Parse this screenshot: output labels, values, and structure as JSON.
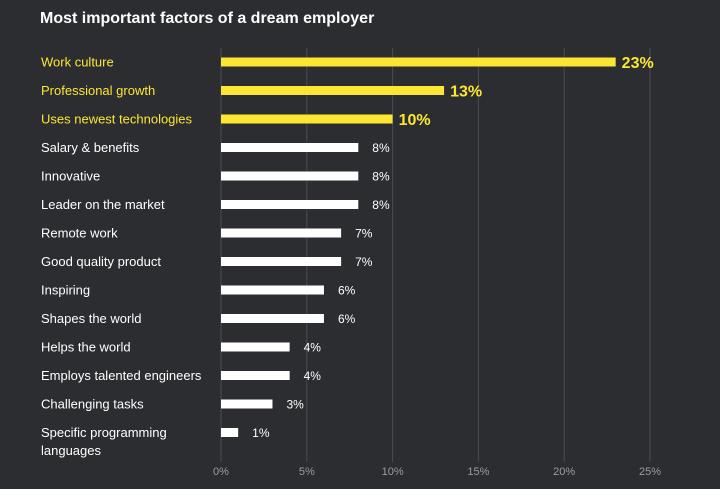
{
  "chart_data": {
    "type": "bar",
    "orientation": "horizontal",
    "title": "Most important factors of a dream employer",
    "categories": [
      "Work culture",
      "Professional growth",
      "Uses newest technologies",
      "Salary & benefits",
      "Innovative",
      "Leader on the market",
      "Remote work",
      "Good quality product",
      "Inspiring",
      "Shapes the world",
      "Helps the world",
      "Employs talented engineers",
      "Challenging tasks",
      "Specific programming languages"
    ],
    "values": [
      23,
      13,
      10,
      8,
      8,
      8,
      7,
      7,
      6,
      6,
      4,
      4,
      3,
      1
    ],
    "value_labels": [
      "23%",
      "13%",
      "10%",
      "8%",
      "8%",
      "8%",
      "7%",
      "7%",
      "6%",
      "6%",
      "4%",
      "4%",
      "3%",
      "1%"
    ],
    "highlighted_count": 3,
    "x_ticks": [
      "0%",
      "5%",
      "10%",
      "15%",
      "20%",
      "25%"
    ],
    "x_tick_values": [
      0,
      5,
      10,
      15,
      20,
      25
    ],
    "xlim": [
      0,
      25
    ],
    "grid": true,
    "legend": "none",
    "colors": {
      "background": "#2b2d31",
      "highlight": "#fde631",
      "bar": "#ffffff",
      "label": "#ffffff",
      "grid": "#4a4c52",
      "tick": "#9a9ca3"
    }
  }
}
